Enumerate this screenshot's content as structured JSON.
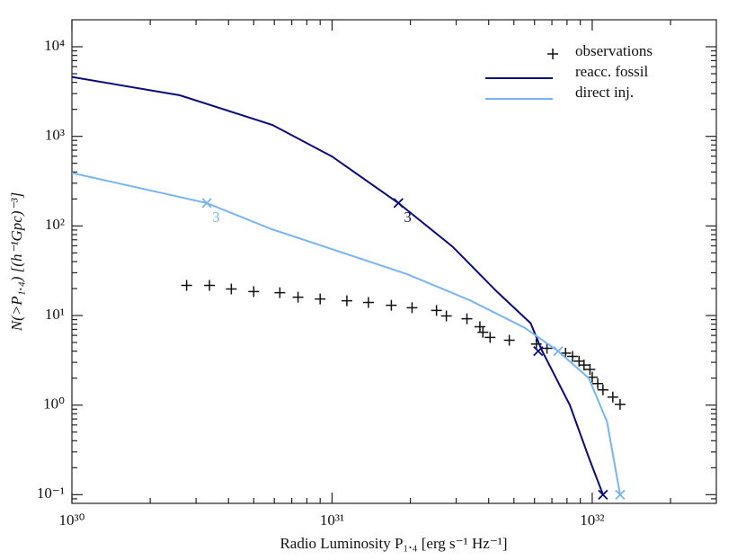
{
  "chart_data": {
    "type": "line",
    "xlabel": "Radio Luminosity P₁.₄ [erg s⁻¹ Hz⁻¹]",
    "ylabel": "N(>P₁.₄) [(h⁻¹Gpc)⁻³]",
    "xscale": "log",
    "yscale": "log",
    "xlim": [
      1e+30,
      3e+32
    ],
    "ylim": [
      0.08,
      20000
    ],
    "xticks": [
      {
        "value": 1e+30,
        "label": "10³⁰"
      },
      {
        "value": 1e+31,
        "label": "10³¹"
      },
      {
        "value": 1e+32,
        "label": "10³²"
      }
    ],
    "yticks": [
      {
        "value": 0.1,
        "label": "10⁻¹"
      },
      {
        "value": 1,
        "label": "10⁰"
      },
      {
        "value": 10,
        "label": "10¹"
      },
      {
        "value": 100,
        "label": "10²"
      },
      {
        "value": 1000,
        "label": "10³"
      },
      {
        "value": 10000,
        "label": "10⁴"
      }
    ],
    "legend": "upper right",
    "series": [
      {
        "name": "observations",
        "type": "scatter",
        "color": "#111111",
        "x": [
          2.76e+30,
          3.38e+30,
          4.1e+30,
          5e+30,
          6.3e+30,
          7.4e+30,
          9e+30,
          1.14e+31,
          1.38e+31,
          1.69e+31,
          2.03e+31,
          2.52e+31,
          2.75e+31,
          3.3e+31,
          3.7e+31,
          3.8e+31,
          4.05e+31,
          4.8e+31,
          6.1e+31,
          6.7e+31,
          7.9e+31,
          8.4e+31,
          8.9e+31,
          9.3e+31,
          9.8e+31,
          1e+32,
          1.05e+32,
          1.1e+32,
          1.2e+32,
          1.28e+32
        ],
        "values": [
          21.7,
          21.7,
          19.8,
          18.5,
          18,
          16,
          15.3,
          14.6,
          14,
          13,
          12.2,
          11.4,
          9.9,
          9.2,
          7.5,
          6.5,
          5.7,
          5.3,
          4.8,
          4.3,
          3.8,
          3.5,
          3.1,
          2.8,
          2.5,
          2.05,
          1.74,
          1.48,
          1.23,
          1.02
        ]
      },
      {
        "name": "reacc. fossil",
        "type": "line",
        "color": "#0b0b78",
        "x": [
          1e+30,
          2.6e+30,
          5.9e+30,
          1e+31,
          1.8e+31,
          2.9e+31,
          4.3e+31,
          5.8e+31,
          6.4e+31,
          8.2e+31,
          9.7e+31,
          1.1e+32
        ],
        "values": [
          4600,
          2870,
          1340,
          595,
          180,
          59,
          18.5,
          8.2,
          4.1,
          1.0,
          0.26,
          0.1
        ],
        "markers": {
          "x": [
            1.8e+31,
            6.2e+31,
            1.1e+32
          ],
          "values": [
            180,
            4,
            0.1
          ]
        },
        "marker_label": "3"
      },
      {
        "name": "direct inj.",
        "type": "line",
        "color": "#78b4f0",
        "x": [
          1e+30,
          3.3e+30,
          5.8e+30,
          1e+31,
          1.94e+31,
          3.4e+31,
          5.5e+31,
          7.4e+31,
          9.7e+31,
          1.14e+32,
          1.28e+32
        ],
        "values": [
          390,
          180,
          93,
          55,
          29,
          14.7,
          7.3,
          4.0,
          2.0,
          0.65,
          0.1
        ],
        "markers": {
          "x": [
            3.3e+30,
            7.4e+31,
            1.28e+32
          ],
          "values": [
            180,
            4.0,
            0.1
          ]
        },
        "marker_label": "3"
      }
    ]
  }
}
